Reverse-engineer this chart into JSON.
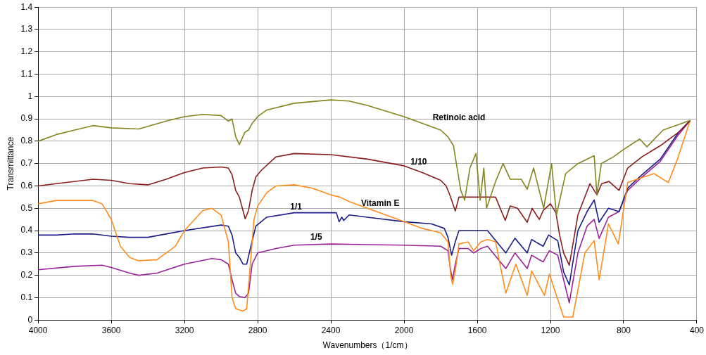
{
  "chart_data": {
    "type": "line",
    "xlabel": "Wavenumbers（1/cm）",
    "ylabel": "Transmittance",
    "xlim": [
      4000,
      400
    ],
    "ylim": [
      0,
      1.4
    ],
    "xticks": [
      4000,
      3600,
      3200,
      2800,
      2400,
      2000,
      1600,
      1200,
      800,
      400
    ],
    "yticks": [
      0,
      0.1,
      0.2,
      0.3,
      0.4,
      0.5,
      0.6,
      0.7,
      0.8,
      0.9,
      1,
      1.1,
      1.2,
      1.3,
      1.4
    ],
    "grid": true,
    "legend": false,
    "marker": "none",
    "line_style": "solid",
    "series": [
      {
        "name": "Retinoic acid",
        "color": "#85851f",
        "x": [
          4000,
          3900,
          3800,
          3700,
          3600,
          3450,
          3300,
          3200,
          3100,
          3000,
          2960,
          2940,
          2920,
          2900,
          2870,
          2850,
          2830,
          2800,
          2750,
          2600,
          2400,
          2300,
          2200,
          2000,
          1800,
          1760,
          1730,
          1710,
          1690,
          1669,
          1640,
          1607,
          1584,
          1564,
          1549,
          1500,
          1459,
          1420,
          1360,
          1327,
          1292,
          1237,
          1194,
          1167,
          1117,
          1050,
          961,
          946,
          922,
          856,
          806,
          712,
          673,
          584,
          436
        ],
        "values": [
          0.8,
          0.83,
          0.85,
          0.87,
          0.86,
          0.855,
          0.89,
          0.91,
          0.92,
          0.915,
          0.89,
          0.9,
          0.82,
          0.785,
          0.84,
          0.85,
          0.88,
          0.91,
          0.94,
          0.97,
          0.985,
          0.98,
          0.96,
          0.91,
          0.85,
          0.82,
          0.78,
          0.68,
          0.58,
          0.536,
          0.68,
          0.745,
          0.536,
          0.68,
          0.5,
          0.62,
          0.7,
          0.63,
          0.63,
          0.585,
          0.68,
          0.5,
          0.7,
          0.47,
          0.655,
          0.7,
          0.735,
          0.56,
          0.7,
          0.73,
          0.76,
          0.81,
          0.775,
          0.85,
          0.893
        ]
      },
      {
        "name": "1/10",
        "color": "#8b1c1c",
        "x": [
          4000,
          3900,
          3700,
          3600,
          3500,
          3400,
          3300,
          3200,
          3100,
          3000,
          2960,
          2940,
          2920,
          2900,
          2868,
          2850,
          2830,
          2810,
          2780,
          2700,
          2600,
          2400,
          2200,
          2000,
          1900,
          1800,
          1770,
          1750,
          1720,
          1700,
          1650,
          1500,
          1447,
          1420,
          1380,
          1327,
          1300,
          1261,
          1240,
          1200,
          1170,
          1150,
          1128,
          1097,
          1050,
          984,
          946,
          920,
          880,
          825,
          778,
          700,
          600,
          500,
          436
        ],
        "values": [
          0.6,
          0.61,
          0.63,
          0.625,
          0.61,
          0.605,
          0.63,
          0.66,
          0.68,
          0.685,
          0.68,
          0.65,
          0.58,
          0.55,
          0.453,
          0.49,
          0.58,
          0.64,
          0.67,
          0.73,
          0.745,
          0.74,
          0.72,
          0.69,
          0.66,
          0.625,
          0.6,
          0.56,
          0.488,
          0.55,
          0.55,
          0.55,
          0.446,
          0.51,
          0.5,
          0.437,
          0.5,
          0.45,
          0.49,
          0.52,
          0.48,
          0.38,
          0.3,
          0.245,
          0.47,
          0.61,
          0.56,
          0.61,
          0.62,
          0.58,
          0.68,
          0.73,
          0.78,
          0.84,
          0.893
        ]
      },
      {
        "name": "Vitamin E",
        "color": "#ff8c1a",
        "x": [
          4000,
          3900,
          3700,
          3650,
          3600,
          3550,
          3500,
          3450,
          3350,
          3250,
          3200,
          3100,
          3050,
          3000,
          2960,
          2940,
          2920,
          2900,
          2880,
          2860,
          2840,
          2820,
          2800,
          2750,
          2700,
          2600,
          2500,
          2400,
          2350,
          2300,
          2200,
          2100,
          2000,
          1900,
          1850,
          1800,
          1760,
          1745,
          1735,
          1720,
          1700,
          1650,
          1620,
          1580,
          1544,
          1500,
          1444,
          1389,
          1327,
          1303,
          1233,
          1206,
          1128,
          1078,
          1012,
          961,
          934,
          883,
          829,
          778,
          727,
          634,
          556,
          506,
          436
        ],
        "values": [
          0.52,
          0.535,
          0.535,
          0.52,
          0.45,
          0.33,
          0.28,
          0.265,
          0.27,
          0.33,
          0.4,
          0.49,
          0.5,
          0.47,
          0.35,
          0.1,
          0.05,
          0.045,
          0.04,
          0.05,
          0.25,
          0.45,
          0.51,
          0.57,
          0.6,
          0.605,
          0.59,
          0.56,
          0.55,
          0.53,
          0.5,
          0.47,
          0.44,
          0.41,
          0.4,
          0.39,
          0.35,
          0.2,
          0.16,
          0.22,
          0.34,
          0.35,
          0.31,
          0.35,
          0.36,
          0.35,
          0.12,
          0.25,
          0.11,
          0.22,
          0.11,
          0.205,
          0.013,
          0.013,
          0.3,
          0.355,
          0.18,
          0.43,
          0.34,
          0.615,
          0.63,
          0.655,
          0.615,
          0.72,
          0.893
        ]
      },
      {
        "name": "1/1",
        "color": "#1c1c8b",
        "x": [
          4000,
          3900,
          3800,
          3700,
          3600,
          3500,
          3400,
          3200,
          3000,
          2960,
          2940,
          2920,
          2900,
          2880,
          2860,
          2840,
          2810,
          2750,
          2600,
          2400,
          2370,
          2355,
          2340,
          2330,
          2300,
          2200,
          2000,
          1850,
          1780,
          1760,
          1740,
          1720,
          1700,
          1650,
          1544,
          1444,
          1394,
          1327,
          1303,
          1240,
          1210,
          1160,
          1128,
          1097,
          1050,
          1000,
          961,
          934,
          883,
          825,
          778,
          700,
          600,
          500,
          436
        ],
        "values": [
          0.38,
          0.38,
          0.385,
          0.385,
          0.375,
          0.37,
          0.37,
          0.4,
          0.425,
          0.42,
          0.38,
          0.3,
          0.28,
          0.25,
          0.25,
          0.32,
          0.42,
          0.46,
          0.48,
          0.48,
          0.48,
          0.44,
          0.46,
          0.445,
          0.47,
          0.46,
          0.44,
          0.43,
          0.41,
          0.37,
          0.29,
          0.35,
          0.4,
          0.4,
          0.4,
          0.3,
          0.366,
          0.3,
          0.36,
          0.33,
          0.38,
          0.355,
          0.215,
          0.157,
          0.4,
          0.485,
          0.537,
          0.437,
          0.5,
          0.485,
          0.59,
          0.65,
          0.72,
          0.84,
          0.893
        ]
      },
      {
        "name": "1/5",
        "color": "#992299",
        "x": [
          4000,
          3800,
          3650,
          3600,
          3500,
          3450,
          3350,
          3200,
          3050,
          3000,
          2960,
          2940,
          2920,
          2900,
          2870,
          2850,
          2830,
          2800,
          2700,
          2600,
          2400,
          2000,
          1800,
          1760,
          1745,
          1735,
          1720,
          1700,
          1650,
          1620,
          1580,
          1544,
          1444,
          1394,
          1327,
          1303,
          1240,
          1206,
          1160,
          1128,
          1097,
          1050,
          1000,
          961,
          934,
          883,
          825,
          778,
          700,
          600,
          500,
          436
        ],
        "values": [
          0.225,
          0.24,
          0.245,
          0.235,
          0.21,
          0.2,
          0.21,
          0.25,
          0.275,
          0.27,
          0.25,
          0.18,
          0.12,
          0.105,
          0.1,
          0.12,
          0.25,
          0.3,
          0.32,
          0.335,
          0.34,
          0.335,
          0.33,
          0.31,
          0.22,
          0.18,
          0.25,
          0.32,
          0.32,
          0.3,
          0.32,
          0.33,
          0.23,
          0.3,
          0.23,
          0.29,
          0.26,
          0.31,
          0.29,
          0.18,
          0.077,
          0.3,
          0.42,
          0.45,
          0.365,
          0.46,
          0.485,
          0.58,
          0.64,
          0.71,
          0.83,
          0.893
        ]
      }
    ]
  }
}
